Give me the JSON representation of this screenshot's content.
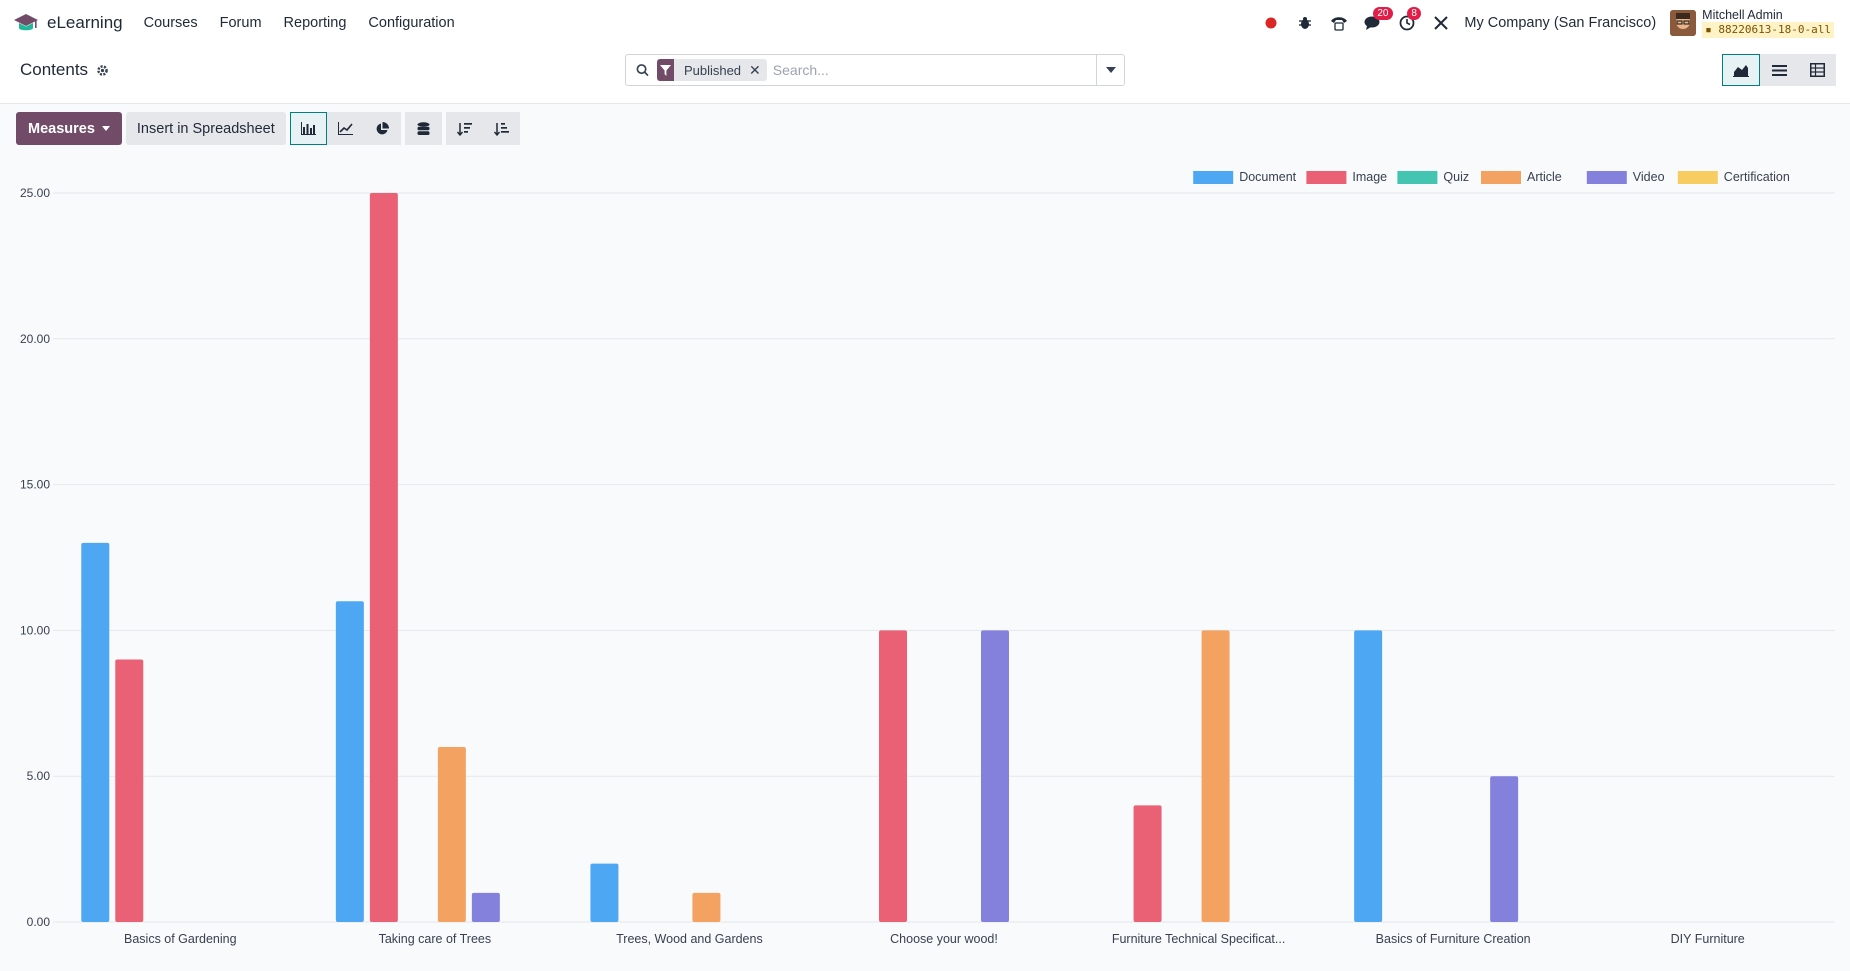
{
  "app": {
    "name": "eLearning"
  },
  "menu": [
    "Courses",
    "Forum",
    "Reporting",
    "Configuration"
  ],
  "systray": {
    "messages_count": "20",
    "activities_count": "8",
    "company": "My Company (San Francisco)",
    "user_name": "Mitchell Admin",
    "db_name": "88220613-18-0-all"
  },
  "breadcrumb": {
    "title": "Contents"
  },
  "search": {
    "facet_label": "Published",
    "placeholder": "Search..."
  },
  "toolbar": {
    "measures_label": "Measures",
    "insert_label": "Insert in Spreadsheet"
  },
  "colors": {
    "brand": "#714b67",
    "accent": "#017e84"
  },
  "chart_data": {
    "type": "bar",
    "categories": [
      "Basics of Gardening",
      "Taking care of Trees",
      "Trees, Wood and Gardens",
      "Choose your wood!",
      "Furniture Technical Specificat...",
      "Basics of Furniture Creation",
      "DIY Furniture"
    ],
    "series": [
      {
        "name": "Document",
        "color": "#4ea7f2",
        "values": [
          13,
          11,
          2,
          0,
          0,
          10,
          0
        ]
      },
      {
        "name": "Image",
        "color": "#ea6175",
        "values": [
          9,
          25,
          0,
          10,
          4,
          0,
          0
        ]
      },
      {
        "name": "Quiz",
        "color": "#43c5b1",
        "values": [
          0,
          0,
          0,
          0,
          0,
          0,
          0
        ]
      },
      {
        "name": "Article",
        "color": "#f4a261",
        "values": [
          0,
          6,
          1,
          0,
          10,
          0,
          0
        ]
      },
      {
        "name": "Video",
        "color": "#8481dd",
        "values": [
          0,
          1,
          0,
          10,
          0,
          5,
          0
        ]
      },
      {
        "name": "Certification",
        "color": "#f7cd62",
        "values": [
          0,
          0,
          0,
          0,
          0,
          0,
          0
        ]
      }
    ],
    "yticks": [
      "0.00",
      "5.00",
      "10.00",
      "15.00",
      "20.00",
      "25.00"
    ],
    "ylim": [
      0,
      25
    ],
    "grid": true,
    "legend_position": "top-right"
  }
}
